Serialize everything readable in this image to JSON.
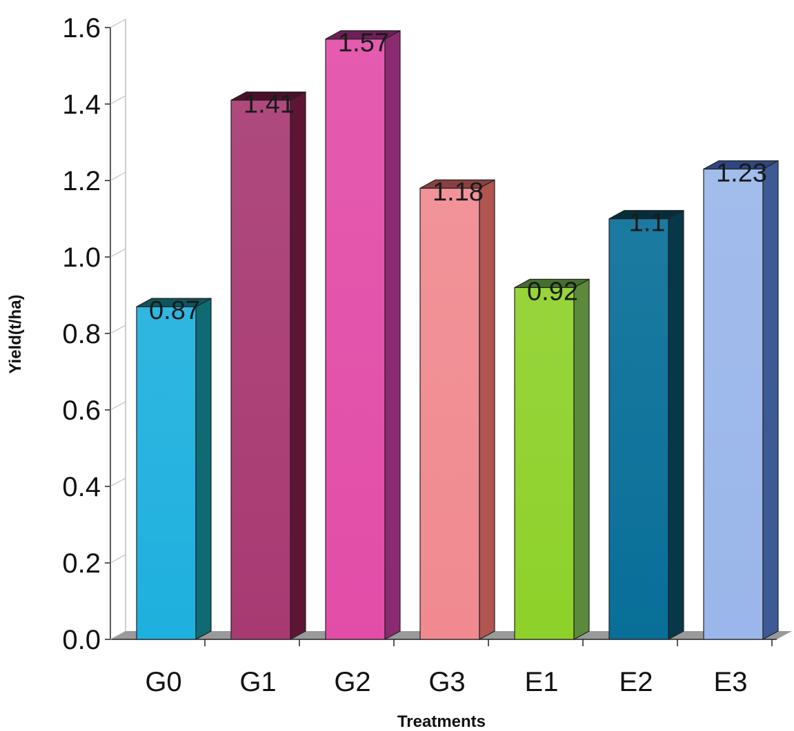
{
  "chart_data": {
    "type": "bar",
    "categories": [
      "G0",
      "G1",
      "G2",
      "G3",
      "E1",
      "E2",
      "E3"
    ],
    "values": [
      0.87,
      1.41,
      1.57,
      1.18,
      0.92,
      1.1,
      1.23
    ],
    "data_labels": [
      "0.87",
      "1.41",
      "1.57",
      "1.18",
      "0.92",
      "1.1",
      "1.23"
    ],
    "title": "",
    "xlabel": "Treatments",
    "ylabel": "Yield(t/ha)",
    "ylim": [
      0,
      1.6
    ],
    "yticks": [
      "0.0",
      "0.2",
      "0.4",
      "0.6",
      "0.8",
      "1.0",
      "1.2",
      "1.4",
      "1.6"
    ],
    "grid": false,
    "legend": "none",
    "style": "3d-column",
    "bar_colors": [
      {
        "front": "#1eb0de",
        "side": "#0f6a73",
        "top": "#0d5560"
      },
      {
        "front": "#a83a72",
        "side": "#5e1534",
        "top": "#4a102a"
      },
      {
        "front": "#e24da8",
        "side": "#8a2a70",
        "top": "#6e1f58"
      },
      {
        "front": "#f08a90",
        "side": "#b05550",
        "top": "#8a4040"
      },
      {
        "front": "#8ed12a",
        "side": "#5a8a3a",
        "top": "#44702c"
      },
      {
        "front": "#086f98",
        "side": "#06384a",
        "top": "#052e3c"
      },
      {
        "front": "#9ab6ea",
        "side": "#3d5a96",
        "top": "#2e4780"
      }
    ],
    "floor_color": "#9a9a9a"
  }
}
